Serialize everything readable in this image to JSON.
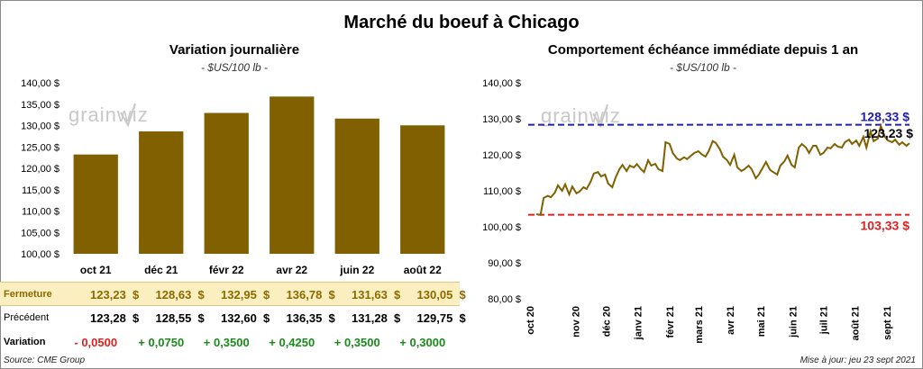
{
  "title": "Marché du boeuf à Chicago",
  "left": {
    "title": "Variation journalière",
    "unit": "- $US/100 lb -"
  },
  "right": {
    "title": "Comportement échéance immédiate depuis 1 an",
    "unit": "- $US/100 lb -"
  },
  "watermark": "grainwiz",
  "table": {
    "rows": [
      {
        "label": "Fermeture",
        "values": [
          "123,23",
          "128,63",
          "132,95",
          "136,78",
          "131,63",
          "130,05"
        ],
        "style": "close"
      },
      {
        "label": "Précédent",
        "values": [
          "123,28",
          "128,55",
          "132,60",
          "136,35",
          "131,28",
          "129,75"
        ],
        "style": "prev"
      },
      {
        "label": "Variation",
        "values": [
          "- 0,0500",
          "+ 0,0750",
          "+ 0,3500",
          "+ 0,4250",
          "+ 0,3500",
          "+ 0,3000"
        ],
        "style": "var"
      }
    ],
    "currency": "$"
  },
  "source": "Source: CME Group",
  "updated": "Mise à jour: jeu 23 sept 2021",
  "colors": {
    "bar": "#806000",
    "line": "#806000",
    "high": "#2020b0",
    "low": "#e02020",
    "positive": "#1a8a1a",
    "negative": "#e02020"
  },
  "chart_data": [
    {
      "type": "bar",
      "title": "Variation journalière",
      "categories": [
        "oct 21",
        "déc 21",
        "févr 22",
        "avr 22",
        "juin 22",
        "août 22"
      ],
      "values": [
        123.23,
        128.63,
        132.95,
        136.78,
        131.63,
        130.05
      ],
      "ylim": [
        100,
        140
      ],
      "yticks": [
        "100,00 $",
        "105,00 $",
        "110,00 $",
        "115,00 $",
        "120,00 $",
        "125,00 $",
        "130,00 $",
        "135,00 $",
        "140,00 $"
      ],
      "grid": false
    },
    {
      "type": "line",
      "title": "Comportement échéance immédiate depuis 1 an",
      "ylim": [
        80,
        140
      ],
      "yticks": [
        "80,00 $",
        "90,00 $",
        "100,00 $",
        "110,00 $",
        "120,00 $",
        "130,00 $",
        "140,00 $"
      ],
      "xticks": [
        "oct 20",
        "nov 20",
        "déc 20",
        "janv 21",
        "févr 21",
        "mars 21",
        "avr 21",
        "mai 21",
        "juin 21",
        "juil 21",
        "août 21",
        "sept 21"
      ],
      "grid": false,
      "high": {
        "value": 128.33,
        "label": "128,33 $"
      },
      "low": {
        "value": 103.33,
        "label": "103,33 $"
      },
      "last": {
        "value": 123.23,
        "label": "123,23 $"
      },
      "x_range": [
        "2020-09-23",
        "2021-09-23"
      ],
      "series": [
        {
          "x": [
            "2020-09-24",
            "2020-09-28",
            "2020-10-01",
            "2020-10-05",
            "2020-10-08",
            "2020-10-12",
            "2020-10-15",
            "2020-10-19",
            "2020-10-22",
            "2020-10-26",
            "2020-10-29",
            "2020-11-02",
            "2020-11-05",
            "2020-11-09",
            "2020-11-12",
            "2020-11-16",
            "2020-11-19",
            "2020-11-23",
            "2020-11-26",
            "2020-11-30",
            "2020-12-03",
            "2020-12-07",
            "2020-12-10",
            "2020-12-14",
            "2020-12-17",
            "2020-12-21",
            "2020-12-24",
            "2020-12-28",
            "2020-12-31",
            "2021-01-04",
            "2021-01-07",
            "2021-01-11",
            "2021-01-14",
            "2021-01-18",
            "2021-01-21",
            "2021-01-25",
            "2021-01-28",
            "2021-02-01",
            "2021-02-04",
            "2021-02-08",
            "2021-02-11",
            "2021-02-15",
            "2021-02-18",
            "2021-02-22",
            "2021-02-25",
            "2021-03-01",
            "2021-03-04",
            "2021-03-08",
            "2021-03-11",
            "2021-03-15",
            "2021-03-18",
            "2021-03-22",
            "2021-03-25",
            "2021-03-29",
            "2021-04-01",
            "2021-04-05",
            "2021-04-08",
            "2021-04-12",
            "2021-04-15",
            "2021-04-19",
            "2021-04-22",
            "2021-04-26",
            "2021-04-29",
            "2021-05-03",
            "2021-05-06",
            "2021-05-10",
            "2021-05-13",
            "2021-05-17",
            "2021-05-20",
            "2021-05-24",
            "2021-05-27",
            "2021-05-31",
            "2021-06-03",
            "2021-06-07",
            "2021-06-10",
            "2021-06-14",
            "2021-06-17",
            "2021-06-21",
            "2021-06-24",
            "2021-06-28",
            "2021-07-01",
            "2021-07-05",
            "2021-07-08",
            "2021-07-12",
            "2021-07-15",
            "2021-07-19",
            "2021-07-22",
            "2021-07-26",
            "2021-07-29",
            "2021-08-02",
            "2021-08-05",
            "2021-08-09",
            "2021-08-12",
            "2021-08-16",
            "2021-08-19",
            "2021-08-23",
            "2021-08-26",
            "2021-08-30",
            "2021-09-02",
            "2021-09-06",
            "2021-09-09",
            "2021-09-13",
            "2021-09-16",
            "2021-09-20",
            "2021-09-23"
          ],
          "values": [
            103.5,
            103.33,
            108.0,
            108.6,
            108.2,
            109.5,
            111.5,
            110.0,
            111.8,
            109.0,
            111.2,
            109.3,
            109.8,
            111.0,
            110.5,
            112.6,
            114.8,
            115.2,
            114.0,
            114.5,
            112.0,
            111.0,
            113.5,
            116.0,
            117.2,
            115.5,
            117.0,
            116.5,
            117.4,
            116.0,
            115.2,
            118.5,
            117.0,
            117.5,
            116.0,
            115.5,
            123.5,
            123.0,
            120.5,
            119.0,
            118.5,
            119.3,
            118.8,
            119.8,
            120.5,
            121.0,
            120.2,
            119.5,
            121.0,
            123.8,
            123.3,
            121.5,
            119.5,
            118.5,
            117.2,
            120.0,
            116.5,
            115.5,
            116.0,
            117.0,
            116.0,
            113.5,
            114.5,
            116.5,
            118.0,
            115.8,
            115.2,
            114.5,
            117.0,
            118.2,
            119.8,
            117.2,
            116.5,
            122.0,
            123.0,
            122.0,
            120.5,
            122.5,
            122.5,
            120.0,
            120.5,
            122.0,
            121.8,
            123.0,
            122.3,
            122.0,
            123.5,
            124.2,
            123.0,
            124.0,
            122.5,
            125.0,
            122.0,
            126.5,
            123.8,
            124.5,
            128.0,
            125.0,
            124.0,
            123.5,
            124.2,
            122.8,
            123.5,
            122.5,
            123.23
          ]
        }
      ]
    }
  ]
}
